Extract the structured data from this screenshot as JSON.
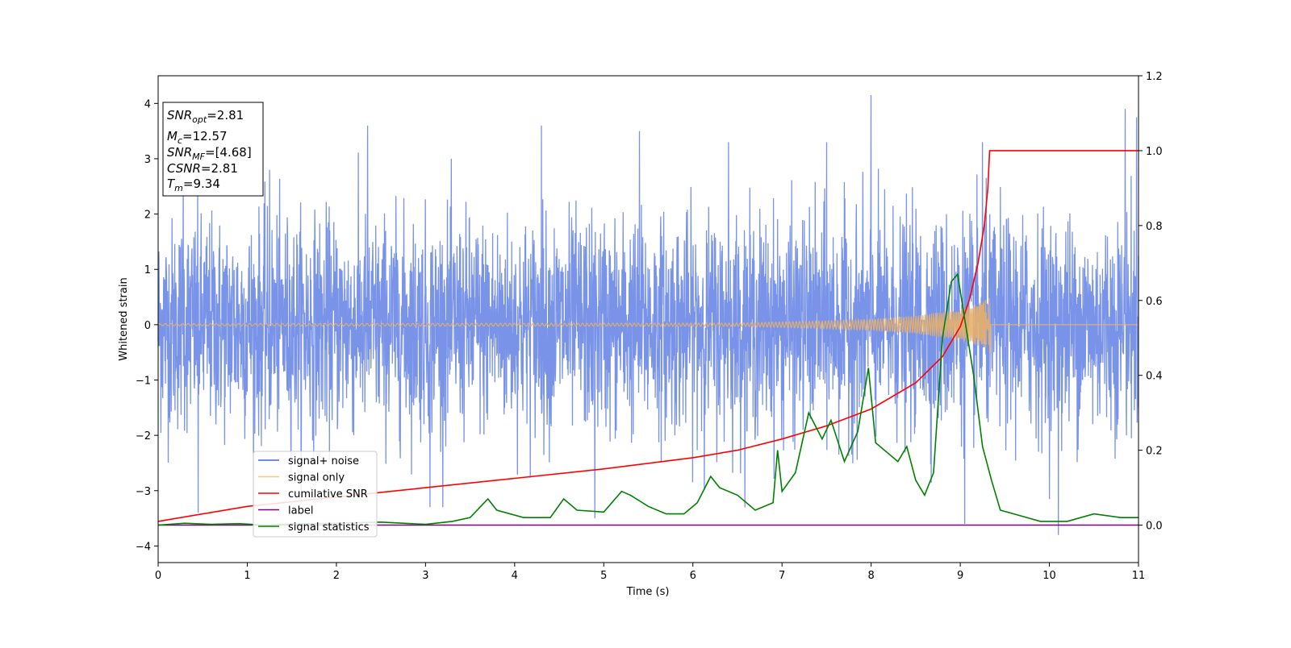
{
  "chart_data": {
    "type": "line",
    "xlabel": "Time (s)",
    "ylabel": "Whitened strain",
    "xlim": [
      0,
      11
    ],
    "ylim": [
      -4.3,
      4.5
    ],
    "y2lim": [
      -0.1,
      1.2
    ],
    "xticks": [
      0,
      1,
      2,
      3,
      4,
      5,
      6,
      7,
      8,
      9,
      10,
      11
    ],
    "yticks": [
      -4,
      -3,
      -2,
      -1,
      0,
      1,
      2,
      3,
      4
    ],
    "y2ticks": [
      0.0,
      0.2,
      0.4,
      0.6,
      0.8,
      1.0,
      1.2
    ],
    "grid": false,
    "annotation": {
      "lines": [
        {
          "sym": "SNR",
          "sub": "opt",
          "val": "=2.81"
        },
        {
          "sym": "M",
          "sub": "c",
          "val": "=12.57"
        },
        {
          "sym": "SNR",
          "sub": "MF",
          "val": "=[4.68]"
        },
        {
          "sym": "CSNR",
          "sub": "",
          "val": "=2.81"
        },
        {
          "sym": "T",
          "sub": "m",
          "val": "=9.34"
        }
      ]
    },
    "legend": {
      "placement": "lower-left",
      "entries": [
        {
          "label": "signal+ noise",
          "color": "#4169e1"
        },
        {
          "label": "signal only",
          "color": "#f5c97a"
        },
        {
          "label": "cumilative SNR",
          "color": "#ff0000"
        },
        {
          "label": "label",
          "color": "#800080"
        },
        {
          "label": "signal statistics",
          "color": "#008000"
        }
      ]
    },
    "series": [
      {
        "name": "signal+ noise",
        "axis": "left",
        "color": "#7893e8",
        "description_stats": {
          "mean": 0,
          "std": 1.0,
          "x_range": [
            0,
            11
          ]
        },
        "peaks": [
          [
            0.28,
            2.7
          ],
          [
            0.45,
            -3.4
          ],
          [
            1.25,
            2.8
          ],
          [
            2.35,
            3.6
          ],
          [
            3.05,
            -3.3
          ],
          [
            4.3,
            3.6
          ],
          [
            4.9,
            -3.5
          ],
          [
            5.4,
            3.5
          ],
          [
            6.4,
            3.3
          ],
          [
            7.5,
            3.3
          ],
          [
            8.0,
            4.15
          ],
          [
            9.05,
            -3.6
          ],
          [
            9.25,
            3.3
          ],
          [
            10.1,
            -3.8
          ],
          [
            10.85,
            3.9
          ],
          [
            10.98,
            3.75
          ]
        ]
      },
      {
        "name": "signal only",
        "axis": "left",
        "color": "#e8b06a",
        "envelope_points": [
          [
            0,
            0.02
          ],
          [
            6.5,
            0.03
          ],
          [
            7.5,
            0.07
          ],
          [
            8.0,
            0.1
          ],
          [
            8.5,
            0.16
          ],
          [
            9.0,
            0.28
          ],
          [
            9.2,
            0.38
          ],
          [
            9.34,
            0.5
          ]
        ],
        "merger_time": 9.34
      },
      {
        "name": "cumilative SNR",
        "axis": "right",
        "color": "#ff0000",
        "points": [
          [
            0,
            0.01
          ],
          [
            1,
            0.05
          ],
          [
            2,
            0.075
          ],
          [
            3,
            0.1
          ],
          [
            4,
            0.125
          ],
          [
            5,
            0.15
          ],
          [
            6,
            0.18
          ],
          [
            6.5,
            0.2
          ],
          [
            7,
            0.23
          ],
          [
            7.5,
            0.265
          ],
          [
            8,
            0.31
          ],
          [
            8.5,
            0.38
          ],
          [
            8.8,
            0.45
          ],
          [
            9.0,
            0.53
          ],
          [
            9.1,
            0.6
          ],
          [
            9.2,
            0.7
          ],
          [
            9.27,
            0.8
          ],
          [
            9.31,
            0.9
          ],
          [
            9.33,
            1.0
          ],
          [
            11,
            1.0
          ]
        ]
      },
      {
        "name": "label",
        "axis": "right",
        "color": "#800080",
        "points": [
          [
            0,
            0.0
          ],
          [
            11,
            0.0
          ]
        ]
      },
      {
        "name": "signal statistics",
        "axis": "right",
        "color": "#008000",
        "points": [
          [
            0,
            0.0
          ],
          [
            0.3,
            0.005
          ],
          [
            0.6,
            0.002
          ],
          [
            0.9,
            0.004
          ],
          [
            1.2,
            0.0
          ],
          [
            1.5,
            0.003
          ],
          [
            2.0,
            0.005
          ],
          [
            2.5,
            0.008
          ],
          [
            3.0,
            0.002
          ],
          [
            3.3,
            0.01
          ],
          [
            3.5,
            0.02
          ],
          [
            3.7,
            0.07
          ],
          [
            3.8,
            0.04
          ],
          [
            4.1,
            0.02
          ],
          [
            4.4,
            0.02
          ],
          [
            4.55,
            0.07
          ],
          [
            4.7,
            0.04
          ],
          [
            5.0,
            0.035
          ],
          [
            5.2,
            0.09
          ],
          [
            5.3,
            0.08
          ],
          [
            5.5,
            0.05
          ],
          [
            5.7,
            0.03
          ],
          [
            5.9,
            0.03
          ],
          [
            6.05,
            0.06
          ],
          [
            6.2,
            0.13
          ],
          [
            6.3,
            0.1
          ],
          [
            6.5,
            0.08
          ],
          [
            6.7,
            0.04
          ],
          [
            6.9,
            0.06
          ],
          [
            6.95,
            0.2
          ],
          [
            7.0,
            0.09
          ],
          [
            7.15,
            0.14
          ],
          [
            7.3,
            0.3
          ],
          [
            7.45,
            0.23
          ],
          [
            7.55,
            0.28
          ],
          [
            7.7,
            0.17
          ],
          [
            7.85,
            0.25
          ],
          [
            7.97,
            0.42
          ],
          [
            8.05,
            0.22
          ],
          [
            8.2,
            0.19
          ],
          [
            8.3,
            0.17
          ],
          [
            8.4,
            0.21
          ],
          [
            8.5,
            0.12
          ],
          [
            8.6,
            0.08
          ],
          [
            8.7,
            0.14
          ],
          [
            8.8,
            0.5
          ],
          [
            8.9,
            0.65
          ],
          [
            8.97,
            0.67
          ],
          [
            9.05,
            0.55
          ],
          [
            9.15,
            0.4
          ],
          [
            9.25,
            0.21
          ],
          [
            9.35,
            0.12
          ],
          [
            9.45,
            0.04
          ],
          [
            9.6,
            0.03
          ],
          [
            9.9,
            0.01
          ],
          [
            10.2,
            0.01
          ],
          [
            10.5,
            0.03
          ],
          [
            10.8,
            0.02
          ],
          [
            11,
            0.02
          ]
        ]
      }
    ]
  }
}
